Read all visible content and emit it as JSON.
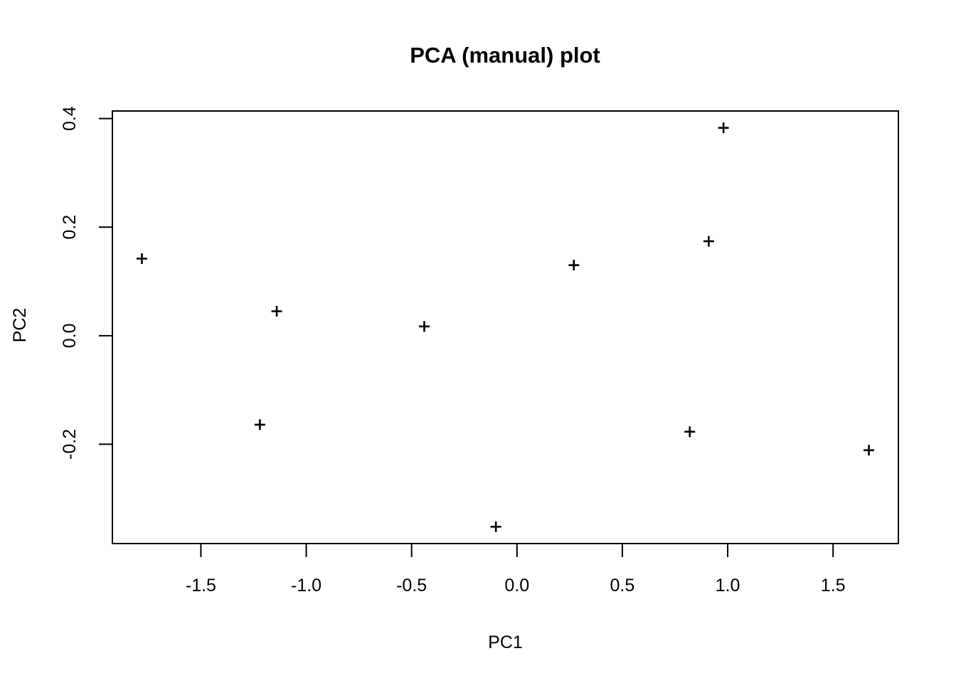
{
  "chart_data": {
    "type": "scatter",
    "title": "PCA (manual) plot",
    "xlabel": "PC1",
    "ylabel": "PC2",
    "marker": "plus",
    "marker_color": "#000000",
    "axis_color": "#000000",
    "background": "#ffffff",
    "grid": false,
    "xlim": [
      -1.92,
      1.81
    ],
    "ylim": [
      -0.383,
      0.414
    ],
    "x_ticks": [
      -1.5,
      -1.0,
      -0.5,
      0.0,
      0.5,
      1.0,
      1.5
    ],
    "x_tick_labels": [
      "-1.5",
      "-1.0",
      "-0.5",
      "0.0",
      "0.5",
      "1.0",
      "1.5"
    ],
    "y_ticks": [
      -0.2,
      0.0,
      0.2,
      0.4
    ],
    "y_tick_labels": [
      "-0.2",
      "0.0",
      "0.2",
      "0.4"
    ],
    "points": [
      {
        "x": -1.78,
        "y": 0.142
      },
      {
        "x": -1.22,
        "y": -0.164
      },
      {
        "x": -1.14,
        "y": 0.045
      },
      {
        "x": -0.44,
        "y": 0.017
      },
      {
        "x": -0.1,
        "y": -0.352
      },
      {
        "x": 0.27,
        "y": 0.13
      },
      {
        "x": 0.82,
        "y": -0.177
      },
      {
        "x": 0.91,
        "y": 0.174
      },
      {
        "x": 0.98,
        "y": 0.383
      },
      {
        "x": 1.67,
        "y": -0.211
      }
    ]
  }
}
